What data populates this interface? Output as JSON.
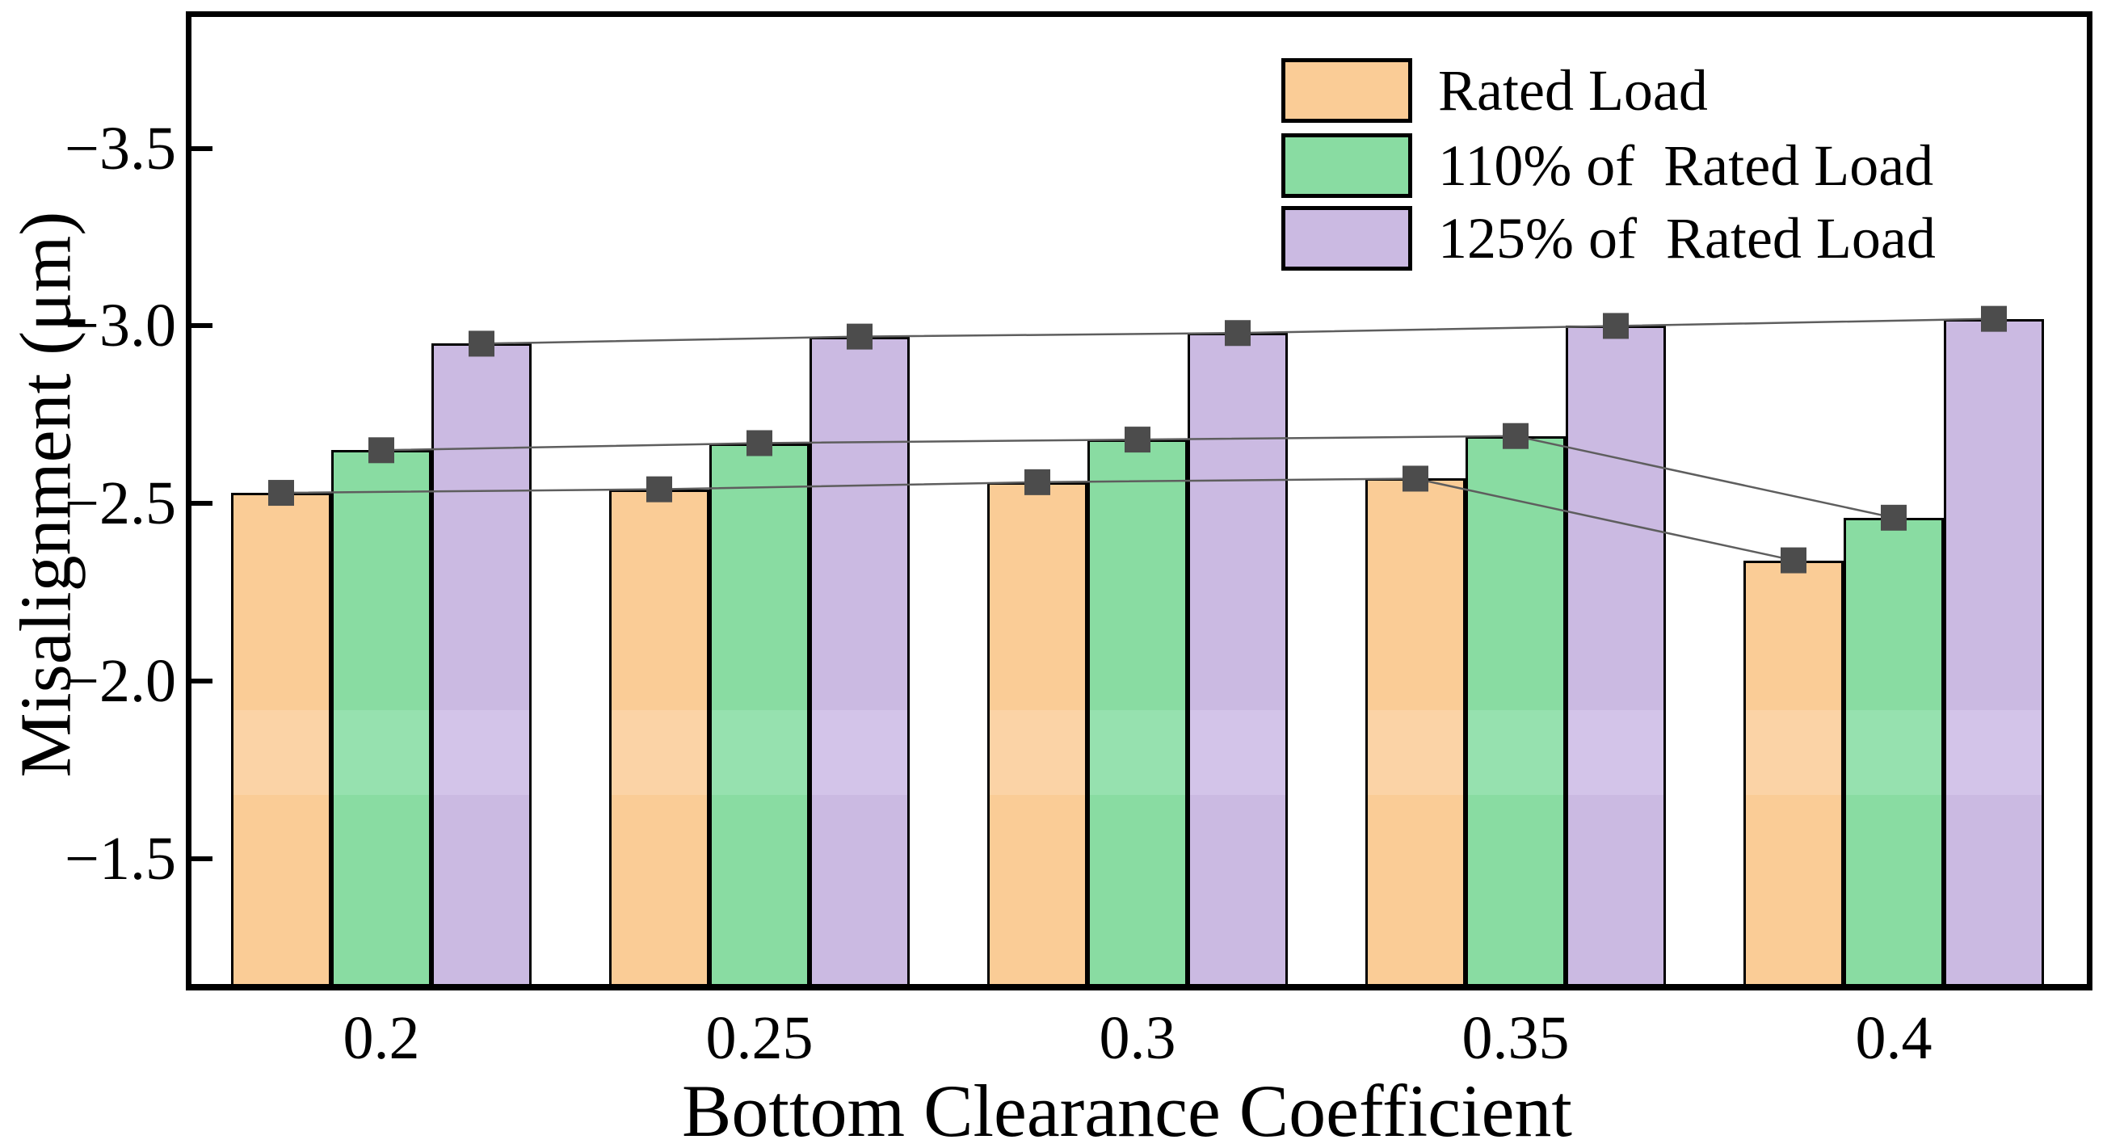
{
  "figure": {
    "background": "#ffffff",
    "frame_color": "#000000"
  },
  "chart_data": {
    "type": "bar",
    "title": "",
    "xlabel": "Bottom Clearance Coefficient",
    "ylabel": "Misalignment (μm)",
    "categories": [
      "0.2",
      "0.25",
      "0.3",
      "0.35",
      "0.4"
    ],
    "series": [
      {
        "name": "Rated Load",
        "color": "#FACC96",
        "band_color": "#FBD3A6",
        "values": [
          -2.53,
          -2.54,
          -2.56,
          -2.57,
          -2.34
        ]
      },
      {
        "name": "110% of  Rated Load",
        "color": "#89DCA2",
        "band_color": "#96E1AF",
        "values": [
          -2.65,
          -2.67,
          -2.68,
          -2.69,
          -2.46
        ]
      },
      {
        "name": "125% of  Rated Load",
        "color": "#CBBAE2",
        "band_color": "#D3C4E9",
        "values": [
          -2.95,
          -2.97,
          -2.98,
          -3.0,
          -3.02
        ]
      }
    ],
    "y_ticks": [
      -3.5,
      -3.0,
      -2.5,
      -2.0,
      -1.5
    ],
    "y_tick_labels": [
      "−3.5",
      "−3.0",
      "−2.5",
      "−2.0",
      "−1.5"
    ],
    "y_axis": {
      "inverted": true,
      "top_value": -3.87,
      "bottom_value": -1.147
    },
    "marker": {
      "shape": "square",
      "color": "#4C4C4C",
      "size": 32
    },
    "connector_line_color": "#5E5E5E",
    "legend_position": "top-right",
    "grid": false
  }
}
